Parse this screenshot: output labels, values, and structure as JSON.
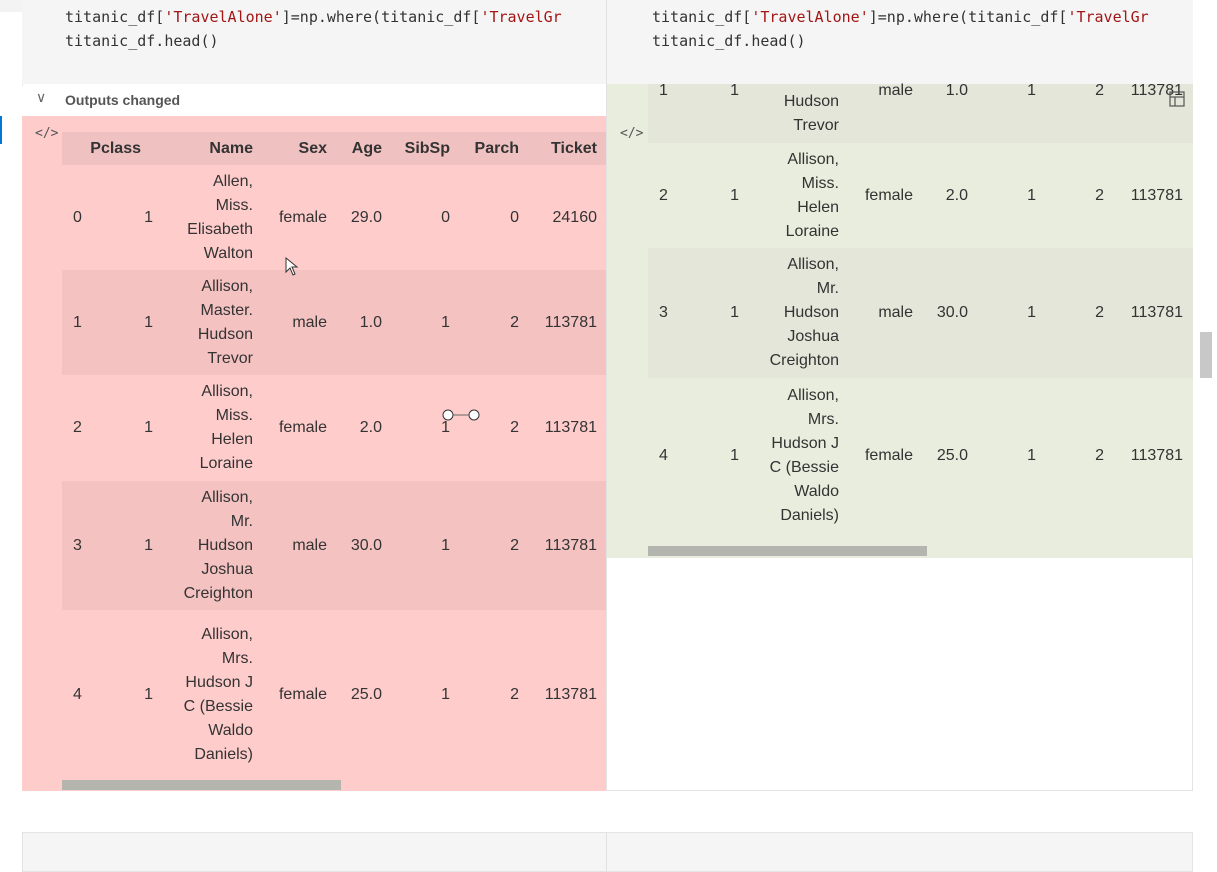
{
  "code": {
    "left_line1_a": "titanic_df[",
    "left_line1_str1": "'TravelAlone'",
    "left_line1_b": "]=np.where(titanic_df[",
    "left_line1_str2": "'TravelGr",
    "left_line2": "titanic_df.head()",
    "right_line1_a": "titanic_df[",
    "right_line1_str1": "'TravelAlone'",
    "right_line1_b": "]=np.where(titanic_df[",
    "right_line1_str2": "'TravelGr",
    "right_line2": "titanic_df.head()"
  },
  "outputs_header": {
    "chevron": "∨",
    "label": "Outputs changed"
  },
  "code_icon": "</>",
  "left_table": {
    "columns": [
      "Pclass",
      "Name",
      "Sex",
      "Age",
      "SibSp",
      "Parch",
      "Ticket"
    ],
    "rows": [
      {
        "idx": "0",
        "pclass": "1",
        "name": [
          "Allen,",
          "Miss.",
          "Elisabeth",
          "Walton"
        ],
        "sex": "female",
        "age": "29.0",
        "sibsp": "0",
        "parch": "0",
        "ticket": "24160"
      },
      {
        "idx": "1",
        "pclass": "1",
        "name": [
          "Allison,",
          "Master.",
          "Hudson",
          "Trevor"
        ],
        "sex": "male",
        "age": "1.0",
        "sibsp": "1",
        "parch": "2",
        "ticket": "113781"
      },
      {
        "idx": "2",
        "pclass": "1",
        "name": [
          "Allison,",
          "Miss.",
          "Helen",
          "Loraine"
        ],
        "sex": "female",
        "age": "2.0",
        "sibsp": "1",
        "parch": "2",
        "ticket": "113781"
      },
      {
        "idx": "3",
        "pclass": "1",
        "name": [
          "Allison,",
          "Mr.",
          "Hudson",
          "Joshua",
          "Creighton"
        ],
        "sex": "male",
        "age": "30.0",
        "sibsp": "1",
        "parch": "2",
        "ticket": "113781"
      },
      {
        "idx": "4",
        "pclass": "1",
        "name": [
          "Allison,",
          "Mrs.",
          "Hudson J",
          "C (Bessie",
          "Waldo",
          "Daniels)"
        ],
        "sex": "female",
        "age": "25.0",
        "sibsp": "1",
        "parch": "2",
        "ticket": "113781"
      }
    ]
  },
  "right_table": {
    "rows": [
      {
        "idx": "1",
        "pclass": "1",
        "name": [
          "Hudson",
          "Trevor"
        ],
        "sex": "male",
        "age": "1.0",
        "sibsp": "1",
        "parch": "2",
        "ticket": "113781"
      },
      {
        "idx": "2",
        "pclass": "1",
        "name": [
          "Allison,",
          "Miss.",
          "Helen",
          "Loraine"
        ],
        "sex": "female",
        "age": "2.0",
        "sibsp": "1",
        "parch": "2",
        "ticket": "113781"
      },
      {
        "idx": "3",
        "pclass": "1",
        "name": [
          "Allison,",
          "Mr.",
          "Hudson",
          "Joshua",
          "Creighton"
        ],
        "sex": "male",
        "age": "30.0",
        "sibsp": "1",
        "parch": "2",
        "ticket": "113781"
      },
      {
        "idx": "4",
        "pclass": "1",
        "name": [
          "Allison,",
          "Mrs.",
          "Hudson J",
          "C (Bessie",
          "Waldo",
          "Daniels)"
        ],
        "sex": "female",
        "age": "25.0",
        "sibsp": "1",
        "parch": "2",
        "ticket": "113781"
      }
    ]
  },
  "colors": {
    "removed_bg": "#ffcccc",
    "added_bg": "#e9edde"
  }
}
